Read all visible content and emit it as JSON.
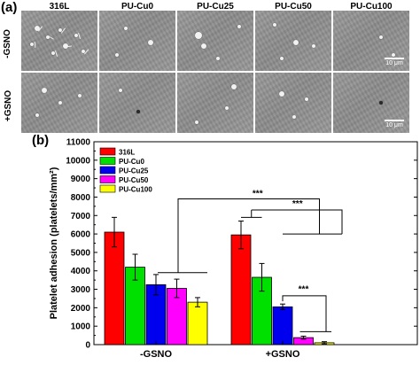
{
  "panel_a": {
    "label": "(a)",
    "columns": [
      "316L",
      "PU-Cu0",
      "PU-Cu25",
      "PU-Cu50",
      "PU-Cu100"
    ],
    "rows": [
      "-GSNO",
      "+GSNO"
    ],
    "scale_label": "10 μm"
  },
  "panel_b_label": "(b)",
  "chart_data": {
    "type": "bar",
    "title": "",
    "xlabel": "",
    "ylabel": "Platelet adhesion (platelets/mm²)",
    "ylim": [
      0,
      11000
    ],
    "yticks": [
      0,
      1000,
      2000,
      3000,
      4000,
      5000,
      6000,
      7000,
      8000,
      9000,
      10000,
      11000
    ],
    "categories": [
      "-GSNO",
      "+GSNO"
    ],
    "legend_position": "top-left",
    "series": [
      {
        "name": "316L",
        "color": "#ff0000",
        "values": [
          6100,
          5950
        ],
        "errors": [
          800,
          750
        ]
      },
      {
        "name": "PU-Cu0",
        "color": "#00e000",
        "values": [
          4200,
          3650
        ],
        "errors": [
          700,
          750
        ]
      },
      {
        "name": "PU-Cu25",
        "color": "#0000ee",
        "values": [
          3250,
          2050
        ],
        "errors": [
          550,
          150
        ]
      },
      {
        "name": "PU-Cu50",
        "color": "#ff00ff",
        "values": [
          3050,
          380
        ],
        "errors": [
          500,
          80
        ]
      },
      {
        "name": "PU-Cu100",
        "color": "#ffff00",
        "values": [
          2300,
          100
        ],
        "errors": [
          250,
          60
        ]
      }
    ],
    "significance_labels": [
      "***",
      "***",
      "***"
    ]
  }
}
